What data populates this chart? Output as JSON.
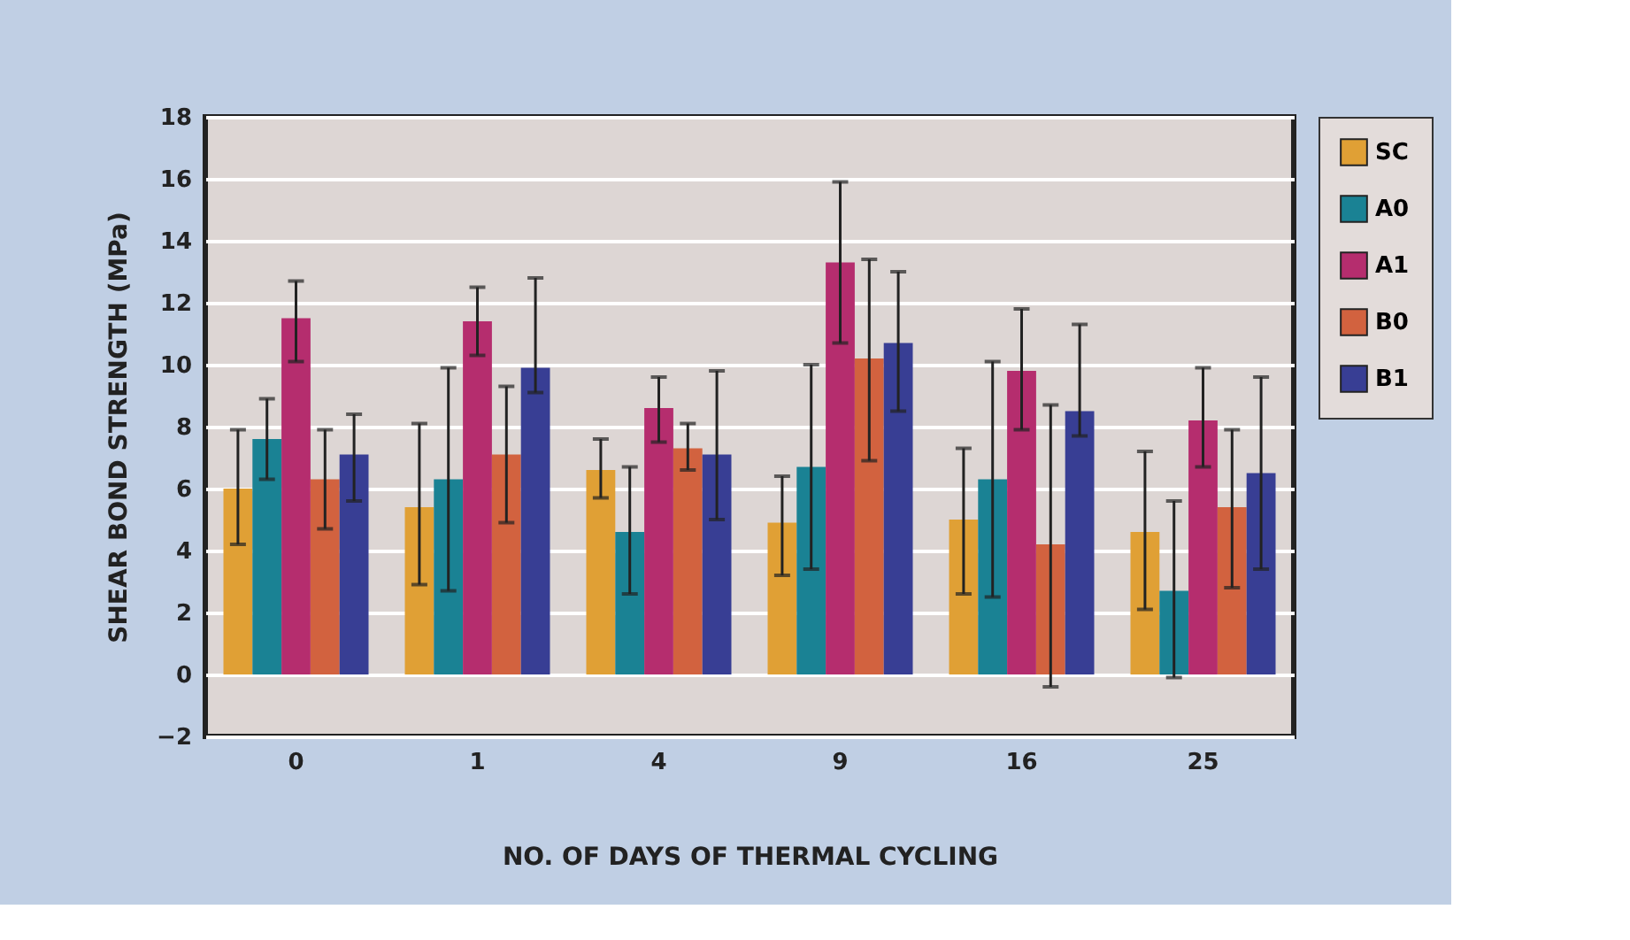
{
  "chart_data": {
    "type": "bar",
    "xlabel": "NO. OF DAYS OF THERMAL CYCLING",
    "ylabel": "SHEAR BOND STRENGTH (MPa)",
    "categories": [
      "0",
      "1",
      "4",
      "9",
      "16",
      "25"
    ],
    "series": [
      {
        "name": "SC",
        "color": "#e0a035",
        "values": [
          6.0,
          5.4,
          6.6,
          4.9,
          5.0,
          4.6
        ],
        "errors": [
          [
            4.2,
            7.9
          ],
          [
            2.9,
            8.1
          ],
          [
            5.7,
            7.6
          ],
          [
            3.2,
            6.4
          ],
          [
            2.6,
            7.3
          ],
          [
            2.1,
            7.2
          ]
        ]
      },
      {
        "name": "A0",
        "color": "#1a8294",
        "values": [
          7.6,
          6.3,
          4.6,
          6.7,
          6.3,
          2.7
        ],
        "errors": [
          [
            6.3,
            8.9
          ],
          [
            2.7,
            9.9
          ],
          [
            2.6,
            6.7
          ],
          [
            3.4,
            10.0
          ],
          [
            2.5,
            10.1
          ],
          [
            -0.1,
            5.6
          ]
        ]
      },
      {
        "name": "A1",
        "color": "#b52d6e",
        "values": [
          11.5,
          11.4,
          8.6,
          13.3,
          9.8,
          8.2
        ],
        "errors": [
          [
            10.1,
            12.7
          ],
          [
            10.3,
            12.5
          ],
          [
            7.5,
            9.6
          ],
          [
            10.7,
            15.9
          ],
          [
            7.9,
            11.8
          ],
          [
            6.7,
            9.9
          ]
        ]
      },
      {
        "name": "B0",
        "color": "#d2623f",
        "values": [
          6.3,
          7.1,
          7.3,
          10.2,
          4.2,
          5.4
        ],
        "errors": [
          [
            4.7,
            7.9
          ],
          [
            4.9,
            9.3
          ],
          [
            6.6,
            8.1
          ],
          [
            6.9,
            13.4
          ],
          [
            -0.4,
            8.7
          ],
          [
            2.8,
            7.9
          ]
        ]
      },
      {
        "name": "B1",
        "color": "#383e94",
        "values": [
          7.1,
          9.9,
          7.1,
          10.7,
          8.5,
          6.5
        ],
        "errors": [
          [
            5.6,
            8.4
          ],
          [
            9.1,
            12.8
          ],
          [
            5.0,
            9.8
          ],
          [
            8.5,
            13.0
          ],
          [
            7.7,
            11.3
          ],
          [
            3.4,
            9.6
          ]
        ]
      }
    ],
    "ylim": [
      -2,
      18
    ],
    "yticks": [
      -2,
      0,
      2,
      4,
      6,
      8,
      10,
      12,
      14,
      16,
      18
    ],
    "grid": "y",
    "legend": "right"
  }
}
